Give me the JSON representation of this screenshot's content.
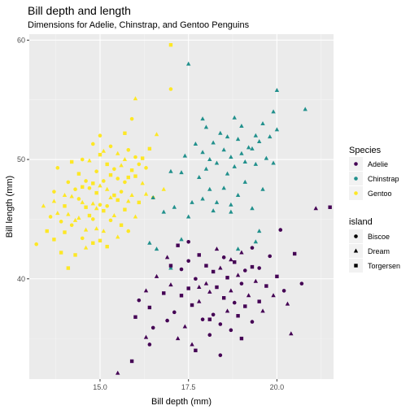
{
  "chart_data": {
    "type": "scatter",
    "title": "Bill depth and length",
    "subtitle": "Dimensions for Adelie, Chinstrap, and Gentoo Penguins",
    "xlabel": "Bill depth (mm)",
    "ylabel": "Bill length (mm)",
    "xlim": [
      13.0,
      21.6
    ],
    "ylim": [
      31.6,
      60.5
    ],
    "x_ticks": [
      "15.0",
      "17.5",
      "20.0"
    ],
    "y_ticks": [
      "40",
      "50",
      "60"
    ],
    "grid": true,
    "legend_placement": "right",
    "legend_species": {
      "title": "Species",
      "entries": [
        {
          "name": "Adelie",
          "color": "#440154"
        },
        {
          "name": "Chinstrap",
          "color": "#21908c"
        },
        {
          "name": "Gentoo",
          "color": "#fde725"
        }
      ]
    },
    "legend_island": {
      "title": "island",
      "entries": [
        {
          "name": "Biscoe",
          "shape": "circle"
        },
        {
          "name": "Dream",
          "shape": "triangle"
        },
        {
          "name": "Torgersen",
          "shape": "square"
        }
      ]
    },
    "series": [
      {
        "name": "Gentoo",
        "color": "#fde725",
        "points": [
          [
            13.2,
            42.9
          ],
          [
            13.4,
            46.1
          ],
          [
            13.5,
            44.0
          ],
          [
            13.6,
            45.2
          ],
          [
            13.7,
            46.5
          ],
          [
            13.7,
            43.3
          ],
          [
            13.7,
            47.3
          ],
          [
            13.8,
            45.5
          ],
          [
            13.9,
            42.2
          ],
          [
            13.9,
            44.8
          ],
          [
            14.0,
            47.0
          ],
          [
            14.0,
            46.1
          ],
          [
            14.1,
            48.1
          ],
          [
            14.1,
            45.4
          ],
          [
            14.1,
            40.9
          ],
          [
            14.2,
            44.5
          ],
          [
            14.2,
            46.9
          ],
          [
            14.2,
            49.8
          ],
          [
            14.3,
            47.5
          ],
          [
            14.3,
            44.9
          ],
          [
            14.3,
            42.0
          ],
          [
            14.4,
            46.7
          ],
          [
            14.4,
            45.1
          ],
          [
            14.4,
            48.8
          ],
          [
            14.5,
            43.4
          ],
          [
            14.5,
            46.4
          ],
          [
            14.5,
            47.7
          ],
          [
            14.5,
            50.0
          ],
          [
            14.6,
            44.1
          ],
          [
            14.6,
            46.0
          ],
          [
            14.6,
            48.2
          ],
          [
            14.6,
            42.6
          ],
          [
            14.7,
            45.3
          ],
          [
            14.7,
            47.6
          ],
          [
            14.7,
            49.9
          ],
          [
            14.8,
            43.0
          ],
          [
            14.8,
            45.0
          ],
          [
            14.8,
            46.3
          ],
          [
            14.8,
            48.0
          ],
          [
            14.8,
            51.3
          ],
          [
            14.9,
            44.2
          ],
          [
            14.9,
            47.2
          ],
          [
            14.9,
            49.0
          ],
          [
            14.9,
            45.9
          ],
          [
            15.0,
            43.2
          ],
          [
            15.0,
            46.2
          ],
          [
            15.0,
            47.8
          ],
          [
            15.0,
            50.4
          ],
          [
            15.0,
            52.0
          ],
          [
            15.1,
            44.0
          ],
          [
            15.1,
            45.7
          ],
          [
            15.1,
            48.2
          ],
          [
            15.1,
            50.7
          ],
          [
            15.2,
            42.7
          ],
          [
            15.2,
            46.1
          ],
          [
            15.2,
            47.5
          ],
          [
            15.2,
            49.6
          ],
          [
            15.3,
            44.9
          ],
          [
            15.3,
            46.8
          ],
          [
            15.3,
            48.7
          ],
          [
            15.3,
            51.1
          ],
          [
            15.4,
            45.3
          ],
          [
            15.4,
            47.0
          ],
          [
            15.4,
            49.2
          ],
          [
            15.5,
            43.5
          ],
          [
            15.5,
            46.6
          ],
          [
            15.5,
            48.4
          ],
          [
            15.5,
            50.5
          ],
          [
            15.6,
            44.5
          ],
          [
            15.6,
            47.3
          ],
          [
            15.6,
            49.5
          ],
          [
            15.7,
            45.8
          ],
          [
            15.7,
            48.1
          ],
          [
            15.7,
            50.0
          ],
          [
            15.7,
            52.2
          ],
          [
            15.8,
            44.0
          ],
          [
            15.8,
            46.5
          ],
          [
            15.8,
            48.5
          ],
          [
            15.8,
            50.8
          ],
          [
            15.9,
            47.0
          ],
          [
            15.9,
            49.1
          ],
          [
            15.9,
            53.4
          ],
          [
            16.0,
            45.2
          ],
          [
            16.0,
            48.6
          ],
          [
            16.0,
            50.2
          ],
          [
            16.0,
            55.1
          ],
          [
            16.1,
            46.4
          ],
          [
            16.1,
            49.6
          ],
          [
            16.2,
            48.0
          ],
          [
            16.2,
            50.1
          ],
          [
            16.3,
            49.3
          ],
          [
            16.3,
            47.1
          ],
          [
            16.4,
            50.9
          ],
          [
            16.5,
            46.8
          ],
          [
            16.6,
            52.1
          ],
          [
            17.0,
            59.6
          ],
          [
            17.0,
            55.9
          ],
          [
            16.8,
            47.5
          ],
          [
            14.0,
            43.9
          ],
          [
            13.8,
            49.3
          ]
        ]
      },
      {
        "name": "Chinstrap",
        "color": "#21908c",
        "points": [
          [
            16.5,
            46.8
          ],
          [
            16.6,
            42.5
          ],
          [
            16.8,
            45.6
          ],
          [
            17.0,
            49.0
          ],
          [
            17.0,
            40.9
          ],
          [
            17.1,
            46.0
          ],
          [
            17.3,
            43.3
          ],
          [
            17.3,
            48.9
          ],
          [
            17.4,
            50.3
          ],
          [
            17.5,
            45.2
          ],
          [
            17.6,
            46.4
          ],
          [
            17.7,
            51.3
          ],
          [
            17.8,
            48.5
          ],
          [
            17.9,
            46.7
          ],
          [
            17.9,
            50.6
          ],
          [
            18.0,
            49.2
          ],
          [
            18.0,
            52.7
          ],
          [
            18.1,
            47.5
          ],
          [
            18.1,
            50.0
          ],
          [
            18.2,
            51.4
          ],
          [
            18.2,
            45.7
          ],
          [
            18.3,
            49.7
          ],
          [
            18.4,
            52.2
          ],
          [
            18.5,
            47.6
          ],
          [
            18.5,
            50.8
          ],
          [
            18.6,
            48.8
          ],
          [
            18.6,
            51.9
          ],
          [
            18.7,
            46.2
          ],
          [
            18.7,
            50.2
          ],
          [
            18.8,
            53.5
          ],
          [
            18.8,
            49.4
          ],
          [
            18.9,
            51.7
          ],
          [
            18.9,
            47.0
          ],
          [
            19.0,
            50.5
          ],
          [
            19.0,
            52.8
          ],
          [
            19.1,
            48.1
          ],
          [
            19.1,
            49.8
          ],
          [
            19.2,
            51.0
          ],
          [
            19.3,
            45.9
          ],
          [
            19.3,
            50.9
          ],
          [
            19.4,
            52.0
          ],
          [
            19.4,
            49.6
          ],
          [
            19.5,
            51.5
          ],
          [
            19.6,
            47.5
          ],
          [
            19.6,
            53.0
          ],
          [
            19.7,
            50.1
          ],
          [
            19.8,
            51.9
          ],
          [
            19.9,
            54.0
          ],
          [
            19.9,
            49.7
          ],
          [
            20.0,
            52.5
          ],
          [
            20.0,
            55.8
          ],
          [
            17.5,
            58.0
          ],
          [
            20.8,
            54.2
          ],
          [
            19.5,
            44.0
          ],
          [
            18.9,
            42.5
          ],
          [
            18.3,
            46.4
          ],
          [
            16.4,
            43.0
          ],
          [
            19.4,
            43.1
          ],
          [
            17.9,
            53.4
          ],
          [
            18.7,
            45.6
          ]
        ]
      },
      {
        "name": "Adelie",
        "color": "#440154",
        "points": [
          [
            15.5,
            32.1
          ],
          [
            16.0,
            36.8
          ],
          [
            16.1,
            38.2
          ],
          [
            16.3,
            39.0
          ],
          [
            16.4,
            37.6
          ],
          [
            16.5,
            35.9
          ],
          [
            16.6,
            40.2
          ],
          [
            16.8,
            38.8
          ],
          [
            16.9,
            36.5
          ],
          [
            17.0,
            39.5
          ],
          [
            17.0,
            41.1
          ],
          [
            17.1,
            37.2
          ],
          [
            17.2,
            35.0
          ],
          [
            17.3,
            38.6
          ],
          [
            17.3,
            40.8
          ],
          [
            17.4,
            36.0
          ],
          [
            17.5,
            39.2
          ],
          [
            17.5,
            41.5
          ],
          [
            17.6,
            34.5
          ],
          [
            17.6,
            37.8
          ],
          [
            17.7,
            40.0
          ],
          [
            17.8,
            38.1
          ],
          [
            17.8,
            42.0
          ],
          [
            17.9,
            36.6
          ],
          [
            18.0,
            39.6
          ],
          [
            18.0,
            41.1
          ],
          [
            18.1,
            35.3
          ],
          [
            18.1,
            38.9
          ],
          [
            18.2,
            40.6
          ],
          [
            18.2,
            37.0
          ],
          [
            18.3,
            42.5
          ],
          [
            18.3,
            39.3
          ],
          [
            18.4,
            36.2
          ],
          [
            18.4,
            40.9
          ],
          [
            18.5,
            38.4
          ],
          [
            18.5,
            41.8
          ],
          [
            18.6,
            37.3
          ],
          [
            18.6,
            40.1
          ],
          [
            18.7,
            35.7
          ],
          [
            18.7,
            39.0
          ],
          [
            18.8,
            41.4
          ],
          [
            18.8,
            38.0
          ],
          [
            18.9,
            40.3
          ],
          [
            18.9,
            36.9
          ],
          [
            19.0,
            39.6
          ],
          [
            19.0,
            42.2
          ],
          [
            19.1,
            37.7
          ],
          [
            19.1,
            40.7
          ],
          [
            19.2,
            38.6
          ],
          [
            19.3,
            41.0
          ],
          [
            19.3,
            36.4
          ],
          [
            19.4,
            39.8
          ],
          [
            19.5,
            38.1
          ],
          [
            19.5,
            40.9
          ],
          [
            19.6,
            37.3
          ],
          [
            19.7,
            39.4
          ],
          [
            19.8,
            41.9
          ],
          [
            19.9,
            38.6
          ],
          [
            20.0,
            40.2
          ],
          [
            20.2,
            39.0
          ],
          [
            20.3,
            37.9
          ],
          [
            20.5,
            42.1
          ],
          [
            20.7,
            39.6
          ],
          [
            21.1,
            45.9
          ],
          [
            21.5,
            46.0
          ],
          [
            20.1,
            44.1
          ],
          [
            20.4,
            35.4
          ],
          [
            15.9,
            33.1
          ],
          [
            16.4,
            34.5
          ],
          [
            16.9,
            41.8
          ],
          [
            17.2,
            42.8
          ],
          [
            17.5,
            43.1
          ],
          [
            17.8,
            39.3
          ],
          [
            18.1,
            36.6
          ],
          [
            18.4,
            33.6
          ],
          [
            18.7,
            41.6
          ],
          [
            19.0,
            35.0
          ],
          [
            19.3,
            42.6
          ],
          [
            16.3,
            35.1
          ],
          [
            17.7,
            34.0
          ]
        ]
      }
    ]
  }
}
